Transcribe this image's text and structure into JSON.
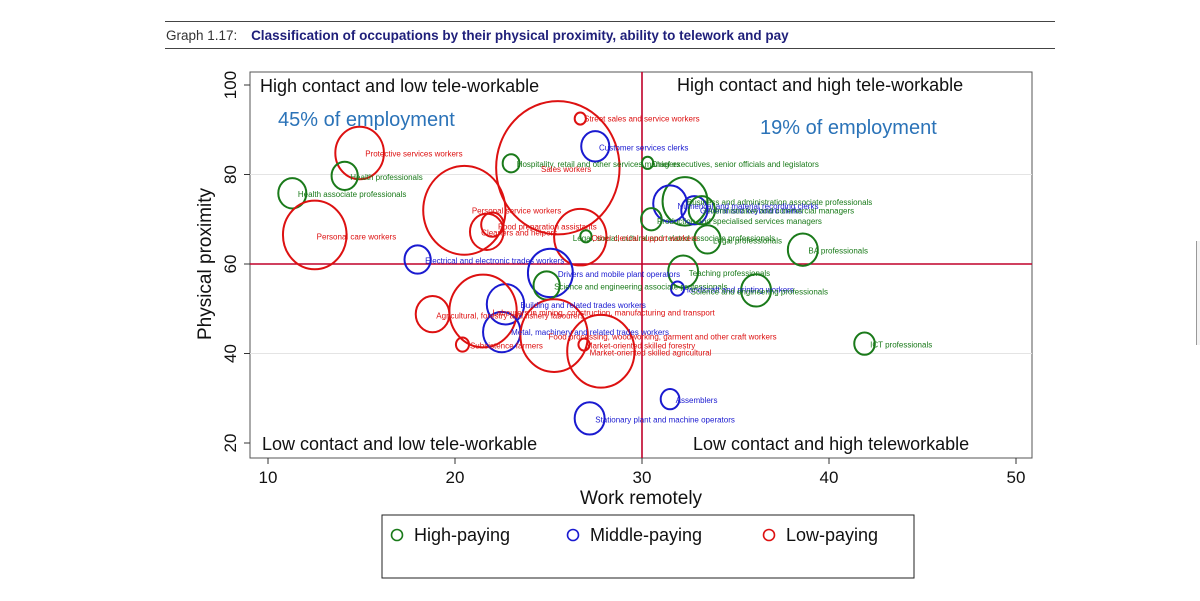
{
  "header": {
    "graph_number": "Graph 1.17:",
    "title": "Classification of occupations by their physical proximity, ability to telework and pay"
  },
  "quadrants": {
    "top_left": "High contact and low tele-workable",
    "top_right": "High contact and high tele-workable",
    "bottom_left": "Low contact and low tele-workable",
    "bottom_right": "Low contact and high teleworkable"
  },
  "employment_shares": {
    "left": "45% of employment",
    "right": "19% of employment"
  },
  "colors": {
    "high": "#1a7a1a",
    "middle": "#1a1ad0",
    "low": "#dd1111",
    "divider": "#c0002a",
    "share_text": "#2b73b8"
  },
  "chart_data": {
    "type": "scatter",
    "xlabel": "Work remotely",
    "ylabel": "Physical proximity",
    "xlim": [
      9,
      51
    ],
    "ylim": [
      18,
      102
    ],
    "xticks": [
      10,
      20,
      30,
      40,
      50
    ],
    "yticks": [
      20,
      40,
      60,
      80,
      100
    ],
    "divider_x": 30,
    "divider_y": 60,
    "grid": "horizontal",
    "legend": {
      "placement": "bottom",
      "entries": [
        {
          "key": "high",
          "label": "High-paying"
        },
        {
          "key": "middle",
          "label": "Middle-paying"
        },
        {
          "key": "low",
          "label": "Low-paying"
        }
      ]
    },
    "points": [
      {
        "label": "Street sales and service workers",
        "x": 26.7,
        "y": 92.5,
        "r": 0.3,
        "pay": "low"
      },
      {
        "label": "Customer services clerks",
        "x": 27.5,
        "y": 86.3,
        "r": 0.75,
        "pay": "middle"
      },
      {
        "label": "Protective services workers",
        "x": 14.9,
        "y": 84.8,
        "r": 1.3,
        "pay": "low"
      },
      {
        "label": "Hospitality, retail and other services managers",
        "x": 23.0,
        "y": 82.5,
        "r": 0.45,
        "pay": "high"
      },
      {
        "label": "Chief executives, senior officials and legislators",
        "x": 30.3,
        "y": 82.6,
        "r": 0.3,
        "pay": "high"
      },
      {
        "label": "Sales workers",
        "x": 25.5,
        "y": 81.5,
        "r": 3.3,
        "pay": "low"
      },
      {
        "label": "Health professionals",
        "x": 14.1,
        "y": 79.7,
        "r": 0.7,
        "pay": "high"
      },
      {
        "label": "Health associate professionals",
        "x": 11.3,
        "y": 75.8,
        "r": 0.75,
        "pay": "high"
      },
      {
        "label": "Business and administration associate professionals",
        "x": 32.3,
        "y": 74.0,
        "r": 1.2,
        "pay": "high"
      },
      {
        "label": "Numerical and material recording clerks",
        "x": 31.5,
        "y": 73.5,
        "r": 0.9,
        "pay": "middle"
      },
      {
        "label": "General and keyboard clerks",
        "x": 32.8,
        "y": 72.0,
        "r": 0.7,
        "pay": "middle"
      },
      {
        "label": "Administrative and commercial managers",
        "x": 33.2,
        "y": 72.0,
        "r": 0.7,
        "pay": "high"
      },
      {
        "label": "Personal service workers",
        "x": 20.5,
        "y": 72.0,
        "r": 2.2,
        "pay": "low"
      },
      {
        "label": "Production and specialised services managers",
        "x": 30.5,
        "y": 70.0,
        "r": 0.55,
        "pay": "high"
      },
      {
        "label": "Food preparation assistants",
        "x": 22.0,
        "y": 68.8,
        "r": 0.6,
        "pay": "low"
      },
      {
        "label": "Cleaners and helpers",
        "x": 21.7,
        "y": 67.2,
        "r": 0.9,
        "pay": "low"
      },
      {
        "label": "Personal care workers",
        "x": 12.5,
        "y": 66.5,
        "r": 1.7,
        "pay": "low"
      },
      {
        "label": "Legal, social, cultural and related associate professionals",
        "x": 27.0,
        "y": 66.2,
        "r": 0.3,
        "pay": "high"
      },
      {
        "label": "Other clerical support workers",
        "x": 26.7,
        "y": 66.0,
        "r": 1.4,
        "pay": "low"
      },
      {
        "label": "Legal professionals",
        "x": 33.5,
        "y": 65.5,
        "r": 0.7,
        "pay": "high"
      },
      {
        "label": "BA professionals",
        "x": 38.6,
        "y": 63.2,
        "r": 0.8,
        "pay": "high"
      },
      {
        "label": "Electrical and electronic trades workers",
        "x": 18.0,
        "y": 61.0,
        "r": 0.7,
        "pay": "middle"
      },
      {
        "label": "Teaching professionals",
        "x": 32.2,
        "y": 58.3,
        "r": 0.8,
        "pay": "high"
      },
      {
        "label": "Drivers and mobile plant operators",
        "x": 25.1,
        "y": 58.0,
        "r": 1.2,
        "pay": "middle"
      },
      {
        "label": "Science and engineering associate professionals",
        "x": 24.9,
        "y": 55.2,
        "r": 0.7,
        "pay": "high"
      },
      {
        "label": "Handicraft and printing workers",
        "x": 31.9,
        "y": 54.5,
        "r": 0.35,
        "pay": "middle"
      },
      {
        "label": "Science and engineering professionals",
        "x": 36.1,
        "y": 54.1,
        "r": 0.8,
        "pay": "high"
      },
      {
        "label": "Building and related trades workers",
        "x": 22.7,
        "y": 51.0,
        "r": 1.0,
        "pay": "middle"
      },
      {
        "label": "Labourers in mining, construction, manufacturing and transport",
        "x": 21.5,
        "y": 49.5,
        "r": 1.8,
        "pay": "low"
      },
      {
        "label": "Agricultural, forestry and fishery labourers",
        "x": 18.8,
        "y": 48.8,
        "r": 0.9,
        "pay": "low"
      },
      {
        "label": "Metal, machinery and related trades workers",
        "x": 22.5,
        "y": 44.8,
        "r": 1.0,
        "pay": "middle"
      },
      {
        "label": "Food processing, woodworking, garment and other craft workers",
        "x": 25.3,
        "y": 44.0,
        "r": 1.8,
        "pay": "low"
      },
      {
        "label": "Market-oriented skilled forestry",
        "x": 26.9,
        "y": 42.0,
        "r": 0.3,
        "pay": "low"
      },
      {
        "label": "Market-oriented skilled agricultural",
        "x": 27.8,
        "y": 40.5,
        "r": 1.8,
        "pay": "low"
      },
      {
        "label": "Subsistence farmers",
        "x": 20.4,
        "y": 42.0,
        "r": 0.35,
        "pay": "low"
      },
      {
        "label": "ICT professionals",
        "x": 41.9,
        "y": 42.2,
        "r": 0.55,
        "pay": "high"
      },
      {
        "label": "Assemblers",
        "x": 31.5,
        "y": 29.8,
        "r": 0.5,
        "pay": "middle"
      },
      {
        "label": "Stationary plant and machine operators",
        "x": 27.2,
        "y": 25.5,
        "r": 0.8,
        "pay": "middle"
      }
    ],
    "visible_labels": [
      {
        "text": "Street sales and service workers",
        "x": 26.9,
        "y": 92.5
      },
      {
        "text": "Customer services clerks",
        "x": 27.7,
        "y": 86.0
      },
      {
        "text": "Protective services workers",
        "x": 15.2,
        "y": 84.7
      },
      {
        "text": "Hospitality, retail and other services managers",
        "x": 23.3,
        "y": 82.4
      },
      {
        "text": "Chief executives, senior officials and legislators",
        "x": 30.5,
        "y": 82.4
      },
      {
        "text": "Sales workers",
        "x": 24.6,
        "y": 81.2
      },
      {
        "text": "Health professionals",
        "x": 14.4,
        "y": 79.4
      },
      {
        "text": "Health associate professionals",
        "x": 11.6,
        "y": 75.6
      },
      {
        "text": "Business and administration associate professionals",
        "x": 32.4,
        "y": 73.8
      },
      {
        "text": "Numerical and material recording clerks",
        "x": 31.9,
        "y": 73.0
      },
      {
        "text": "General and keyboard clerks",
        "x": 33.1,
        "y": 71.9
      },
      {
        "text": "Administrative and commercial managers",
        "x": 33.5,
        "y": 71.9
      },
      {
        "text": "Personal service workers",
        "x": 20.9,
        "y": 72.0
      },
      {
        "text": "Production and specialised services managers",
        "x": 30.8,
        "y": 69.6
      },
      {
        "text": "Food preparation assistants",
        "x": 22.3,
        "y": 68.4
      },
      {
        "text": "Cleaners and helpers",
        "x": 21.4,
        "y": 67.0
      },
      {
        "text": "Personal care workers",
        "x": 12.6,
        "y": 66.2
      },
      {
        "text": "Legal, social, cultural and related associate professionals",
        "x": 26.3,
        "y": 65.8
      },
      {
        "text": "Other clerical support workers",
        "x": 27.3,
        "y": 65.8
      },
      {
        "text": "Legal professionals",
        "x": 33.8,
        "y": 65.2
      },
      {
        "text": "BA professionals",
        "x": 38.9,
        "y": 63.0
      },
      {
        "text": "Electrical and electronic trades workers",
        "x": 18.4,
        "y": 60.8
      },
      {
        "text": "Teaching professionals",
        "x": 32.5,
        "y": 58.0
      },
      {
        "text": "Drivers and mobile plant operators",
        "x": 25.5,
        "y": 57.8
      },
      {
        "text": "Science and engineering associate professionals",
        "x": 25.3,
        "y": 55.0
      },
      {
        "text": "Handicraft and printing workers",
        "x": 32.2,
        "y": 54.3
      },
      {
        "text": "Science and engineering professionals",
        "x": 32.6,
        "y": 53.8
      },
      {
        "text": "Building and related trades workers",
        "x": 23.5,
        "y": 50.8
      },
      {
        "text": "Labourers in mining, construction, manufacturing and transport",
        "x": 22.0,
        "y": 49.2
      },
      {
        "text": "Agricultural, forestry and fishery labourers",
        "x": 19.0,
        "y": 48.5
      },
      {
        "text": "Metal, machinery and related trades workers",
        "x": 23.0,
        "y": 44.8
      },
      {
        "text": "Food processing, woodworking, garment and other craft workers",
        "x": 25.0,
        "y": 43.8
      },
      {
        "text": "Market-oriented skilled forestry",
        "x": 27.0,
        "y": 41.8
      },
      {
        "text": "Market-oriented skilled agricultural",
        "x": 27.2,
        "y": 40.2
      },
      {
        "text": "Subsistence farmers",
        "x": 20.8,
        "y": 41.8
      },
      {
        "text": "ICT professionals",
        "x": 42.2,
        "y": 42.0
      },
      {
        "text": "Assemblers",
        "x": 31.8,
        "y": 29.6
      },
      {
        "text": "Stationary plant and machine operators",
        "x": 27.5,
        "y": 25.2
      }
    ]
  }
}
